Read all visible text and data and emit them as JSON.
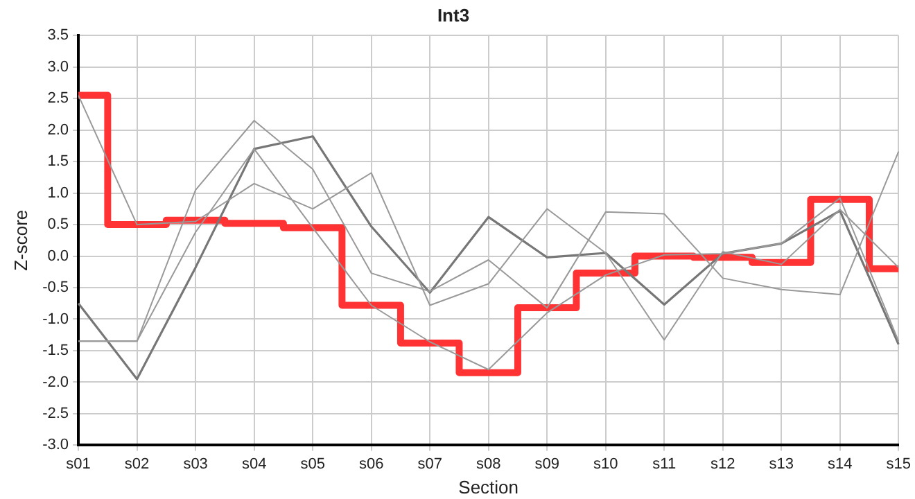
{
  "chart_data": {
    "type": "line",
    "title": "Int3",
    "xlabel": "Section",
    "ylabel": "Z-score",
    "categories": [
      "s01",
      "s02",
      "s03",
      "s04",
      "s05",
      "s06",
      "s07",
      "s08",
      "s09",
      "s10",
      "s11",
      "s12",
      "s13",
      "s14",
      "s15"
    ],
    "ylim": [
      -3,
      3.5
    ],
    "yticks": [
      {
        "value": -3,
        "label": "-3.0"
      },
      -2.5,
      {
        "value": -2,
        "label": "-2.0"
      },
      -1.5,
      {
        "value": -1,
        "label": "-1.0"
      },
      -0.5,
      {
        "value": 0,
        "label": "0.0"
      },
      0.5,
      {
        "value": 1,
        "label": "1.0"
      },
      1.5,
      {
        "value": 2,
        "label": "2.0"
      },
      2.5,
      {
        "value": 3,
        "label": "3.0"
      },
      3.5
    ],
    "grid": true,
    "legend": false,
    "marker": "none",
    "line_style": "solid",
    "series": [
      {
        "color": "#999999",
        "values": [
          2.55,
          0.5,
          0.55,
          1.15,
          0.75,
          1.32,
          -0.78,
          -0.44,
          0.75,
          0.05,
          -1.33,
          0.07,
          -0.13,
          0.74,
          -0.18
        ]
      },
      {
        "color": "#999999",
        "values": [
          -1.35,
          -1.35,
          1.05,
          2.15,
          1.38,
          -0.27,
          -0.56,
          -0.06,
          -0.82,
          0.7,
          0.67,
          -0.35,
          -0.53,
          -0.61,
          1.66
        ]
      },
      {
        "color": "#999999",
        "values": [
          -1.35,
          -1.35,
          0.38,
          1.7,
          0.45,
          -0.78,
          -1.36,
          -1.8,
          -0.9,
          -0.3,
          0.02,
          0.04,
          0.2,
          0.92,
          -1.35
        ]
      },
      {
        "color": "#777777",
        "values": [
          -0.75,
          -1.95,
          -0.18,
          1.7,
          1.9,
          0.47,
          -0.58,
          0.62,
          -0.02,
          0.05,
          -0.77,
          0.04,
          0.2,
          0.72,
          -1.4
        ]
      },
      {
        "type": "step",
        "color": "#ff3333",
        "values": [
          2.55,
          0.5,
          0.57,
          0.52,
          0.45,
          -0.78,
          -1.38,
          -1.85,
          -0.82,
          -0.27,
          0.0,
          -0.02,
          -0.1,
          0.9,
          -0.2
        ]
      }
    ]
  }
}
